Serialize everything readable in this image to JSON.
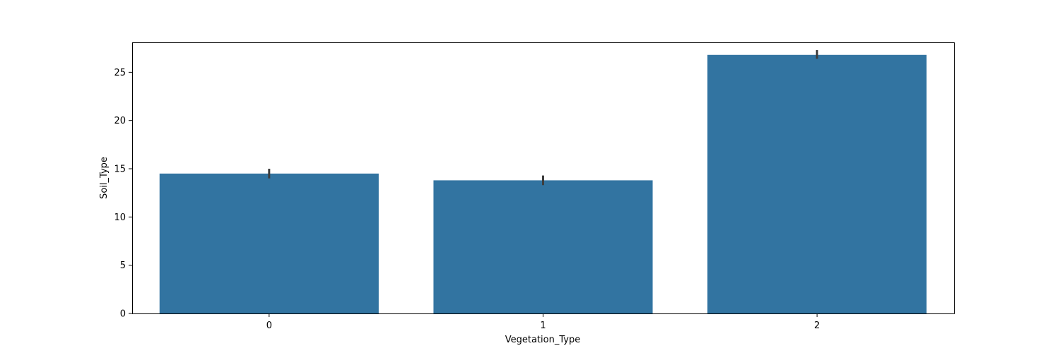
{
  "chart_data": {
    "type": "bar",
    "title": "",
    "xlabel": "Vegetation_Type",
    "ylabel": "Soil_Type",
    "categories": [
      "0",
      "1",
      "2"
    ],
    "values": [
      14.5,
      13.8,
      26.8
    ],
    "error_bars": [
      [
        14.0,
        15.0
      ],
      [
        13.3,
        14.3
      ],
      [
        26.4,
        27.3
      ]
    ],
    "ylim": [
      0,
      28.1
    ],
    "yticks": [
      0,
      5,
      10,
      15,
      20,
      25
    ],
    "grid": false,
    "legend": "none",
    "colors": {
      "bar": "#3274a1",
      "error_bar": "#3d3d3d",
      "axis": "#000000"
    }
  }
}
